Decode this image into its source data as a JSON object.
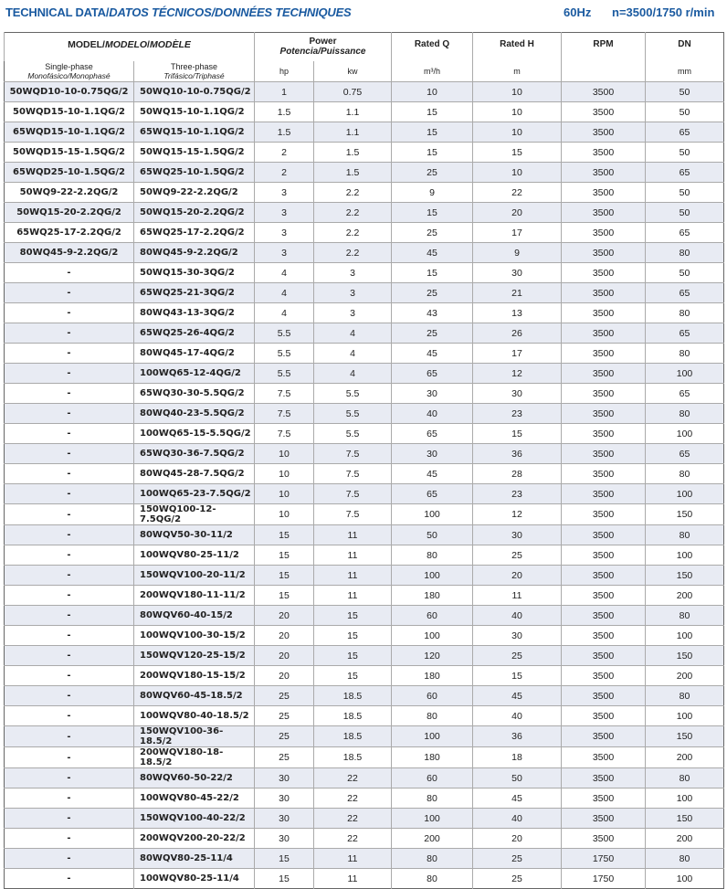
{
  "header": {
    "title": "TECHNICAL DATA",
    "title_es": "DATOS TÉCNICOS",
    "title_fr": "DONNÉES TECHNIQUES",
    "sep": "/",
    "frequency": "60Hz",
    "speed": "n=3500/1750 r/min"
  },
  "columns": {
    "model": "MODEL",
    "model_es": "MODELO",
    "model_fr": "MODÈLE",
    "single": "Single-phase",
    "single_sub": "Monofásico/Monophasé",
    "three": "Three-phase",
    "three_sub": "Trifásico/Triphasé",
    "power": "Power",
    "power_sub": "Potencia/Puissance",
    "hp": "hp",
    "kw": "kw",
    "q": "Rated Q",
    "q_unit": "m³/h",
    "h": "Rated H",
    "h_unit": "m",
    "rpm": "RPM",
    "dn": "DN",
    "dn_unit": "mm"
  },
  "rows": [
    [
      "50WQD10-10-0.75QG/2",
      "50WQ10-10-0.75QG/2",
      "1",
      "0.75",
      "10",
      "10",
      "3500",
      "50"
    ],
    [
      "50WQD15-10-1.1QG/2",
      "50WQ15-10-1.1QG/2",
      "1.5",
      "1.1",
      "15",
      "10",
      "3500",
      "50"
    ],
    [
      "65WQD15-10-1.1QG/2",
      "65WQ15-10-1.1QG/2",
      "1.5",
      "1.1",
      "15",
      "10",
      "3500",
      "65"
    ],
    [
      "50WQD15-15-1.5QG/2",
      "50WQ15-15-1.5QG/2",
      "2",
      "1.5",
      "15",
      "15",
      "3500",
      "50"
    ],
    [
      "65WQD25-10-1.5QG/2",
      "65WQ25-10-1.5QG/2",
      "2",
      "1.5",
      "25",
      "10",
      "3500",
      "65"
    ],
    [
      "50WQ9-22-2.2QG/2",
      "50WQ9-22-2.2QG/2",
      "3",
      "2.2",
      "9",
      "22",
      "3500",
      "50"
    ],
    [
      "50WQ15-20-2.2QG/2",
      "50WQ15-20-2.2QG/2",
      "3",
      "2.2",
      "15",
      "20",
      "3500",
      "50"
    ],
    [
      "65WQ25-17-2.2QG/2",
      "65WQ25-17-2.2QG/2",
      "3",
      "2.2",
      "25",
      "17",
      "3500",
      "65"
    ],
    [
      "80WQ45-9-2.2QG/2",
      "80WQ45-9-2.2QG/2",
      "3",
      "2.2",
      "45",
      "9",
      "3500",
      "80"
    ],
    [
      "-",
      "50WQ15-30-3QG/2",
      "4",
      "3",
      "15",
      "30",
      "3500",
      "50"
    ],
    [
      "-",
      "65WQ25-21-3QG/2",
      "4",
      "3",
      "25",
      "21",
      "3500",
      "65"
    ],
    [
      "-",
      "80WQ43-13-3QG/2",
      "4",
      "3",
      "43",
      "13",
      "3500",
      "80"
    ],
    [
      "-",
      "65WQ25-26-4QG/2",
      "5.5",
      "4",
      "25",
      "26",
      "3500",
      "65"
    ],
    [
      "-",
      "80WQ45-17-4QG/2",
      "5.5",
      "4",
      "45",
      "17",
      "3500",
      "80"
    ],
    [
      "-",
      "100WQ65-12-4QG/2",
      "5.5",
      "4",
      "65",
      "12",
      "3500",
      "100"
    ],
    [
      "-",
      "65WQ30-30-5.5QG/2",
      "7.5",
      "5.5",
      "30",
      "30",
      "3500",
      "65"
    ],
    [
      "-",
      "80WQ40-23-5.5QG/2",
      "7.5",
      "5.5",
      "40",
      "23",
      "3500",
      "80"
    ],
    [
      "-",
      "100WQ65-15-5.5QG/2",
      "7.5",
      "5.5",
      "65",
      "15",
      "3500",
      "100"
    ],
    [
      "-",
      "65WQ30-36-7.5QG/2",
      "10",
      "7.5",
      "30",
      "36",
      "3500",
      "65"
    ],
    [
      "-",
      "80WQ45-28-7.5QG/2",
      "10",
      "7.5",
      "45",
      "28",
      "3500",
      "80"
    ],
    [
      "-",
      "100WQ65-23-7.5QG/2",
      "10",
      "7.5",
      "65",
      "23",
      "3500",
      "100"
    ],
    [
      "-",
      "150WQ100-12-7.5QG/2",
      "10",
      "7.5",
      "100",
      "12",
      "3500",
      "150"
    ],
    [
      "-",
      "80WQV50-30-11/2",
      "15",
      "11",
      "50",
      "30",
      "3500",
      "80"
    ],
    [
      "-",
      "100WQV80-25-11/2",
      "15",
      "11",
      "80",
      "25",
      "3500",
      "100"
    ],
    [
      "-",
      "150WQV100-20-11/2",
      "15",
      "11",
      "100",
      "20",
      "3500",
      "150"
    ],
    [
      "-",
      "200WQV180-11-11/2",
      "15",
      "11",
      "180",
      "11",
      "3500",
      "200"
    ],
    [
      "-",
      "80WQV60-40-15/2",
      "20",
      "15",
      "60",
      "40",
      "3500",
      "80"
    ],
    [
      "-",
      "100WQV100-30-15/2",
      "20",
      "15",
      "100",
      "30",
      "3500",
      "100"
    ],
    [
      "-",
      "150WQV120-25-15/2",
      "20",
      "15",
      "120",
      "25",
      "3500",
      "150"
    ],
    [
      "-",
      "200WQV180-15-15/2",
      "20",
      "15",
      "180",
      "15",
      "3500",
      "200"
    ],
    [
      "-",
      "80WQV60-45-18.5/2",
      "25",
      "18.5",
      "60",
      "45",
      "3500",
      "80"
    ],
    [
      "-",
      "100WQV80-40-18.5/2",
      "25",
      "18.5",
      "80",
      "40",
      "3500",
      "100"
    ],
    [
      "-",
      "150WQV100-36-18.5/2",
      "25",
      "18.5",
      "100",
      "36",
      "3500",
      "150"
    ],
    [
      "-",
      "200WQV180-18-18.5/2",
      "25",
      "18.5",
      "180",
      "18",
      "3500",
      "200"
    ],
    [
      "-",
      "80WQV60-50-22/2",
      "30",
      "22",
      "60",
      "50",
      "3500",
      "80"
    ],
    [
      "-",
      "100WQV80-45-22/2",
      "30",
      "22",
      "80",
      "45",
      "3500",
      "100"
    ],
    [
      "-",
      "150WQV100-40-22/2",
      "30",
      "22",
      "100",
      "40",
      "3500",
      "150"
    ],
    [
      "-",
      "200WQV200-20-22/2",
      "30",
      "22",
      "200",
      "20",
      "3500",
      "200"
    ],
    [
      "-",
      "80WQV80-25-11/4",
      "15",
      "11",
      "80",
      "25",
      "1750",
      "80"
    ],
    [
      "-",
      "100WQV80-25-11/4",
      "15",
      "11",
      "80",
      "25",
      "1750",
      "100"
    ]
  ],
  "colors": {
    "title": "#1a5aa0",
    "row_shade": "#e8ebf3"
  }
}
